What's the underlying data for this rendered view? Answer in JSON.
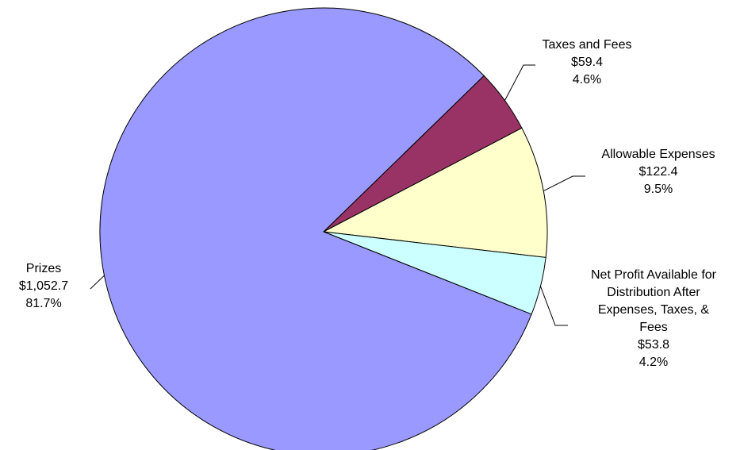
{
  "chart_data": {
    "type": "pie",
    "title": "",
    "slices": [
      {
        "label_lines": [
          "Taxes and Fees"
        ],
        "amount": "$59.4",
        "percent": "4.6%",
        "value": 59.4,
        "color": "#993366"
      },
      {
        "label_lines": [
          "Allowable Expenses"
        ],
        "amount": "$122.4",
        "percent": "9.5%",
        "value": 122.4,
        "color": "#FFFFCC"
      },
      {
        "label_lines": [
          "Net Profit Available for",
          "Distribution After",
          "Expenses, Taxes, &",
          "Fees"
        ],
        "amount": "$53.8",
        "percent": "4.2%",
        "value": 53.8,
        "color": "#CCFFFF"
      },
      {
        "label_lines": [
          "Prizes"
        ],
        "amount": "$1,052.7",
        "percent": "81.7%",
        "value": 1052.7,
        "color": "#9999FF"
      }
    ]
  }
}
